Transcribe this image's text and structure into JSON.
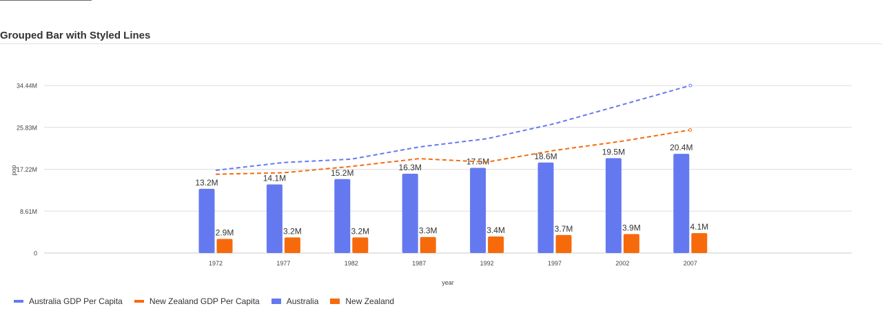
{
  "title": "Grouped Bar with Styled Lines",
  "chart_data": {
    "type": "bar",
    "categories": [
      "1972",
      "1977",
      "1982",
      "1987",
      "1992",
      "1997",
      "2002",
      "2007"
    ],
    "xlabel": "year",
    "ylabel": "pop",
    "yticks": [
      "0",
      "8.61M",
      "17.22M",
      "25.83M",
      "34.44M"
    ],
    "ytick_values": [
      0,
      8.61,
      17.22,
      25.83,
      34.44
    ],
    "ylim": [
      0,
      34.44
    ],
    "grid": true,
    "legend_position": "bottom-left",
    "bar_series": [
      {
        "name": "Australia",
        "color": "#6479f0",
        "values": [
          13.2,
          14.1,
          15.2,
          16.3,
          17.5,
          18.6,
          19.5,
          20.4
        ],
        "labels": [
          "13.2M",
          "14.1M",
          "15.2M",
          "16.3M",
          "17.5M",
          "18.6M",
          "19.5M",
          "20.4M"
        ]
      },
      {
        "name": "New Zealand",
        "color": "#f76a0c",
        "values": [
          2.9,
          3.2,
          3.2,
          3.3,
          3.4,
          3.7,
          3.9,
          4.1
        ],
        "labels": [
          "2.9M",
          "3.2M",
          "3.2M",
          "3.3M",
          "3.4M",
          "3.7M",
          "3.9M",
          "4.1M"
        ]
      }
    ],
    "line_series": [
      {
        "name": "Australia GDP Per Capita",
        "color": "#6479f0",
        "style": "dashed",
        "values": [
          17.0,
          18.6,
          19.3,
          21.8,
          23.5,
          26.6,
          30.5,
          34.44
        ]
      },
      {
        "name": "New Zealand GDP Per Capita",
        "color": "#f76a0c",
        "style": "dashed",
        "values": [
          16.2,
          16.5,
          17.8,
          19.4,
          18.7,
          21.1,
          23.0,
          25.3
        ]
      }
    ]
  }
}
